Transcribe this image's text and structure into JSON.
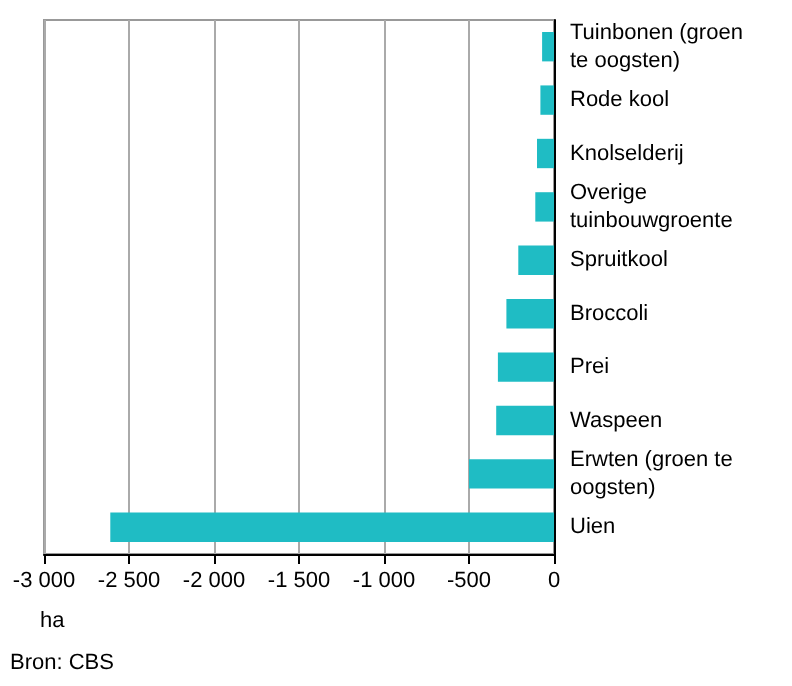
{
  "chart_data": {
    "type": "bar",
    "orientation": "horizontal",
    "categories": [
      "Tuinbonen (groen te oogsten)",
      "Rode kool",
      "Knolselderij",
      "Overige tuinbouwgroente",
      "Spruitkool",
      "Broccoli",
      "Prei",
      "Waspeen",
      "Erwten (groen te oogsten)",
      "Uien"
    ],
    "values": [
      -70,
      -80,
      -100,
      -110,
      -210,
      -280,
      -330,
      -340,
      -500,
      -2610
    ],
    "color": "#1fbcc4",
    "xlim": [
      -3000,
      0
    ],
    "xticks": [
      {
        "value": -3000,
        "label": "-3 000"
      },
      {
        "value": -2500,
        "label": "-2 500"
      },
      {
        "value": -2000,
        "label": "-2 000"
      },
      {
        "value": -1500,
        "label": "-1 500"
      },
      {
        "value": -1000,
        "label": "-1 000"
      },
      {
        "value": -500,
        "label": "-500"
      },
      {
        "value": 0,
        "label": "0"
      }
    ],
    "xlabel": "ha",
    "grid": "x",
    "annotations": [
      "Bron: CBS"
    ]
  }
}
